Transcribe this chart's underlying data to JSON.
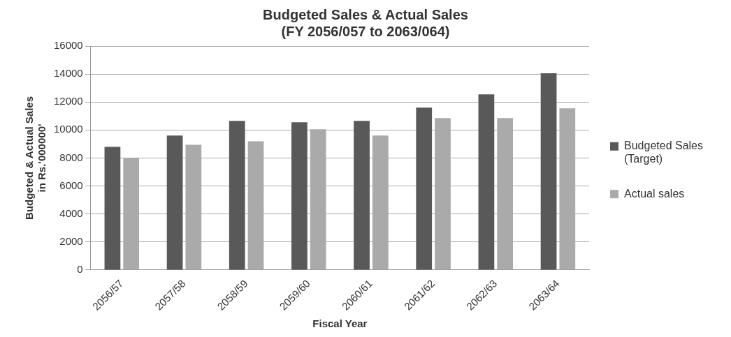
{
  "chart_data": {
    "type": "bar",
    "title": [
      "Budgeted Sales & Actual Sales",
      "(FY 2056/057 to 2063/064)"
    ],
    "xlabel": "Fiscal Year",
    "ylabel": [
      "Budgeted & Actual Sales",
      "in Rs.'000000'"
    ],
    "categories": [
      "2056/57",
      "2057/58",
      "2058/59",
      "2059/60",
      "2060/61",
      "2061/62",
      "2062/63",
      "2063/64"
    ],
    "series": [
      {
        "name": [
          "Budgeted Sales",
          "(Target)"
        ],
        "color": "#595959",
        "values": [
          8800,
          9600,
          10650,
          10550,
          10650,
          11600,
          12550,
          14050
        ]
      },
      {
        "name": "Actual sales",
        "color": "#aaaaaa",
        "values": [
          8000,
          8950,
          9200,
          10050,
          9600,
          10850,
          10850,
          11550
        ]
      }
    ],
    "ylim": [
      0,
      16000
    ],
    "yticks": [
      0,
      2000,
      4000,
      6000,
      8000,
      10000,
      12000,
      14000,
      16000
    ],
    "grid": "y",
    "legend": "right"
  }
}
